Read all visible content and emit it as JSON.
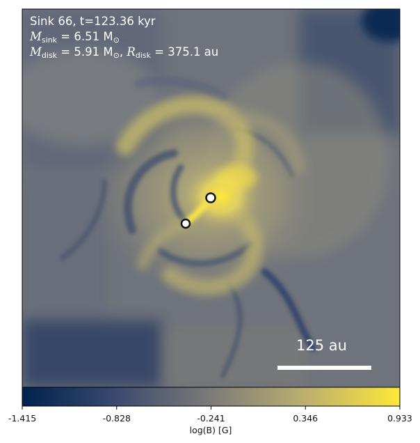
{
  "annotation": {
    "line1": "Sink 66, t=123.36 kyr",
    "msink_symbol": "M",
    "msink_sub": "sink",
    "msink_value": " = 6.51 M",
    "msink_sun": "⊙",
    "mdisk_symbol": "M",
    "mdisk_sub": "disk",
    "mdisk_value": " = 5.91 M",
    "mdisk_sun": "⊙",
    "mdisk_sep": ", ",
    "rdisk_symbol": "R",
    "rdisk_sub": "disk",
    "rdisk_value": " = 375.1 au"
  },
  "scale_bar": {
    "label": "125 au"
  },
  "colorbar": {
    "label": "log(B) [G]",
    "ticks": [
      "-1.415",
      "-0.828",
      "-0.241",
      "0.346",
      "0.933"
    ],
    "colors": [
      "#00224e",
      "#7c7b78",
      "#fee838"
    ]
  },
  "sinks": [
    {
      "name": "primary"
    },
    {
      "name": "secondary"
    }
  ]
}
